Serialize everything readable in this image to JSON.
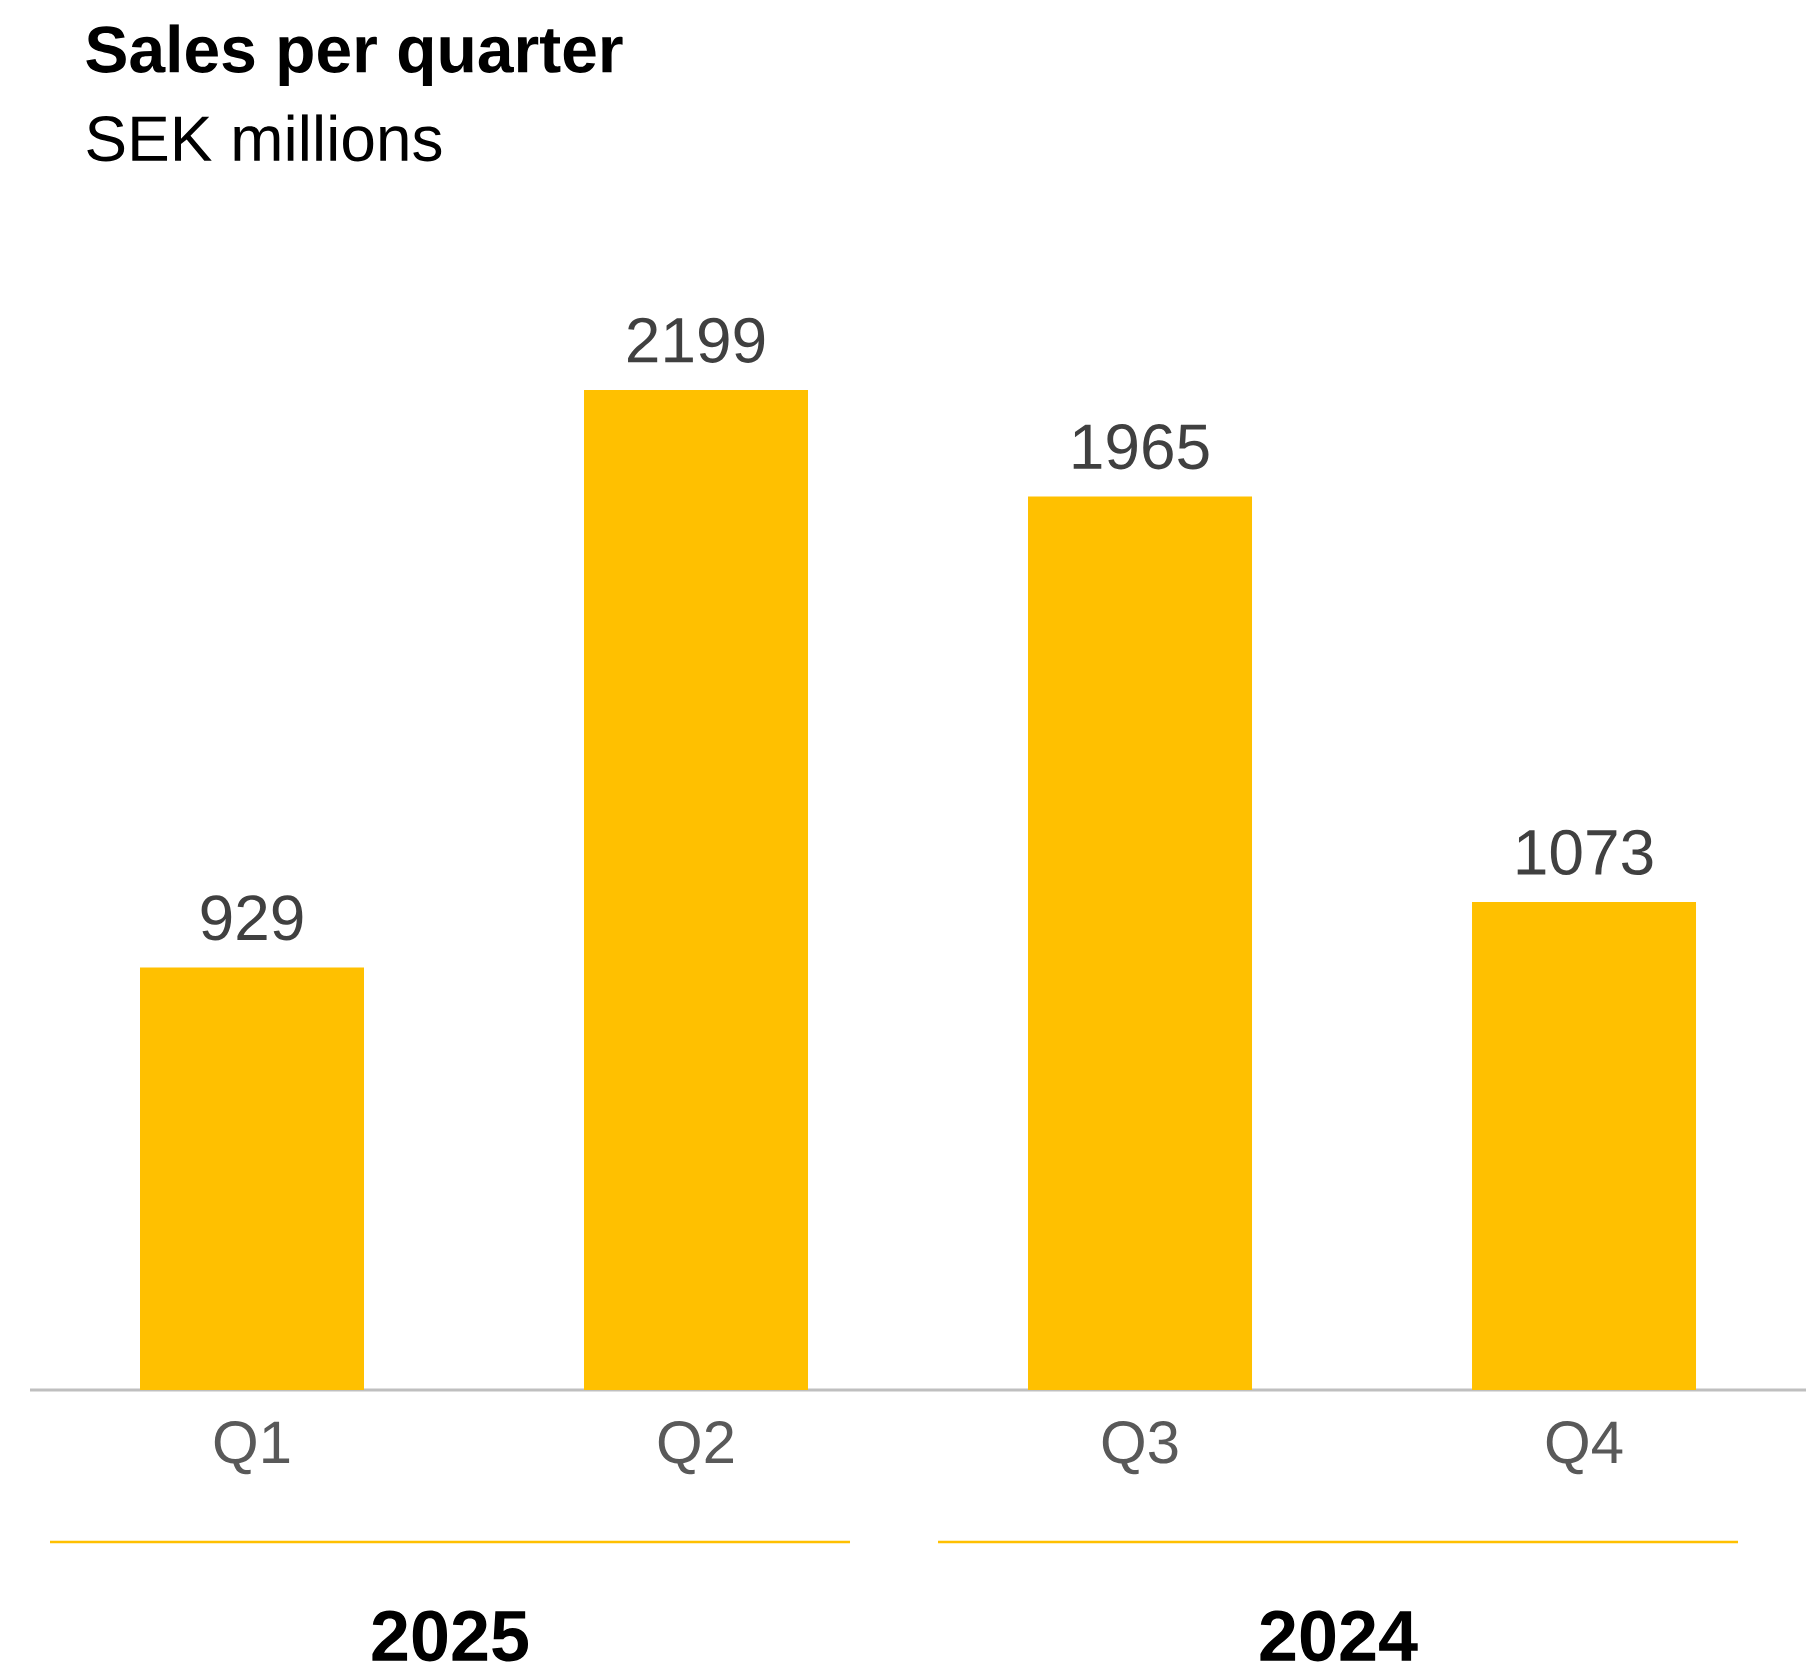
{
  "chart_data": {
    "type": "bar",
    "title": "Sales per quarter",
    "subtitle": "SEK millions",
    "categories": [
      "Q1",
      "Q2",
      "Q3",
      "Q4"
    ],
    "values": [
      929,
      2199,
      1965,
      1073
    ],
    "color": "#ffc000",
    "data_labels": true,
    "annotations": [
      "2025",
      "2024"
    ]
  }
}
